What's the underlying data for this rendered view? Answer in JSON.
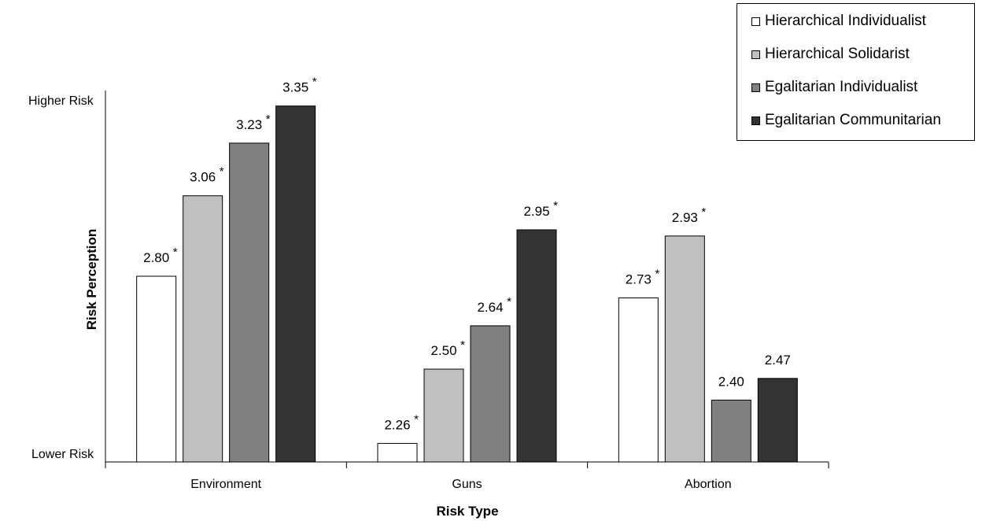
{
  "chart_data": {
    "type": "bar",
    "xlabel": "Risk Type",
    "ylabel": "Risk Perception",
    "y_tick_labels": {
      "top": "Higher Risk",
      "bottom": "Lower Risk"
    },
    "ylim": [
      2.2,
      3.4
    ],
    "categories": [
      "Environment",
      "Guns",
      "Abortion"
    ],
    "series": [
      {
        "name": "Hierarchical Individualist",
        "color": "#ffffff",
        "values": [
          2.8,
          2.26,
          2.73
        ],
        "labels": [
          "2.80",
          "2.26",
          "2.73"
        ],
        "significant": [
          true,
          true,
          true
        ]
      },
      {
        "name": "Hierarchical Solidarist",
        "color": "#c0c0c0",
        "values": [
          3.06,
          2.5,
          2.93
        ],
        "labels": [
          "3.06",
          "2.50",
          "2.93"
        ],
        "significant": [
          true,
          true,
          true
        ]
      },
      {
        "name": "Egalitarian Individualist",
        "color": "#808080",
        "values": [
          3.23,
          2.64,
          2.4
        ],
        "labels": [
          "3.23",
          "2.64",
          "2.40"
        ],
        "significant": [
          true,
          true,
          false
        ]
      },
      {
        "name": "Egalitarian Communitarian",
        "color": "#333333",
        "values": [
          3.35,
          2.95,
          2.47
        ],
        "labels": [
          "3.35",
          "2.95",
          "2.47"
        ],
        "significant": [
          true,
          true,
          false
        ]
      }
    ],
    "significance_marker": "*",
    "legend_position": "top-right",
    "grid": false
  }
}
